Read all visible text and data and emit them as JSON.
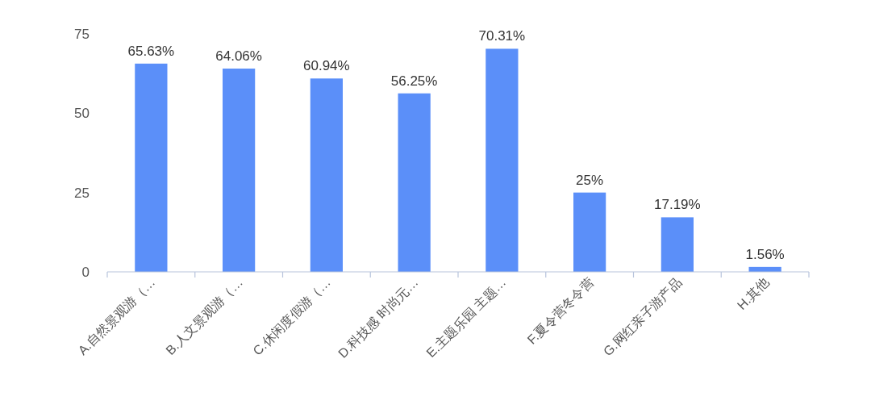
{
  "chart_data": {
    "type": "bar",
    "categories": [
      "A.自然景观游（…",
      "B.人文景观游（…",
      "C.休闲度假游（…",
      "D.科技感 时尚元…",
      "E.主题乐园 主题…",
      "F.夏令营冬令营",
      "G.网红亲子游产品",
      "H.其他"
    ],
    "values": [
      65.63,
      64.06,
      60.94,
      56.25,
      70.31,
      25,
      17.19,
      1.56
    ],
    "value_labels": [
      "65.63%",
      "64.06%",
      "60.94%",
      "56.25%",
      "70.31%",
      "25%",
      "17.19%",
      "1.56%"
    ],
    "color": "#5b8ff9",
    "ylim": [
      0,
      75
    ],
    "yticks": [
      0,
      25,
      50,
      75
    ],
    "grid": false
  }
}
